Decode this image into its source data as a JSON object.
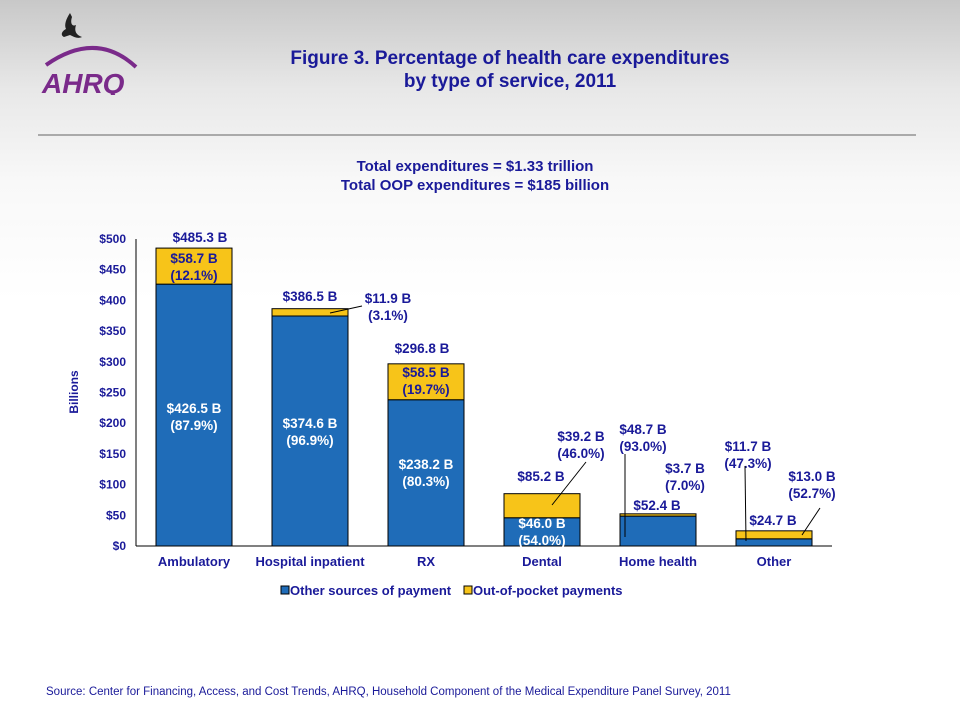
{
  "logo": {
    "text": "AHRQ",
    "icon": "hhs-eagle-icon"
  },
  "title_lines": [
    "Figure 3. Percentage of health care expenditures",
    "by type of service, 2011"
  ],
  "subtitle_lines": [
    "Total expenditures = $1.33 trillion",
    "Total OOP expenditures = $185 billion"
  ],
  "source": "Source: Center for Financing, Access, and Cost Trends, AHRQ, Household Component of the Medical Expenditure Panel Survey, 2011",
  "colors": {
    "other_sources": "#1f6cb8",
    "out_of_pocket": "#f7c419",
    "text": "#1a1a99"
  },
  "chart_data": {
    "type": "bar",
    "stacked": true,
    "ylabel": "Billions",
    "ylim": [
      0,
      500
    ],
    "yticks": [
      "$0",
      "$50",
      "$100",
      "$150",
      "$200",
      "$250",
      "$300",
      "$350",
      "$400",
      "$450",
      "$500"
    ],
    "ytick_values": [
      0,
      50,
      100,
      150,
      200,
      250,
      300,
      350,
      400,
      450,
      500
    ],
    "categories": [
      "Ambulatory",
      "Hospital inpatient",
      "RX",
      "Dental",
      "Home health",
      "Other"
    ],
    "series": [
      {
        "name": "Other sources of payment",
        "values": [
          426.5,
          374.6,
          238.2,
          46.0,
          48.7,
          11.7
        ]
      },
      {
        "name": "Out-of-pocket payments",
        "values": [
          58.7,
          11.9,
          58.5,
          39.2,
          3.7,
          13.0
        ]
      }
    ],
    "legend_position": "bottom",
    "grid": false,
    "data_labels": [
      {
        "total": "$485.3 B",
        "other": "$426.5 B",
        "other_pct": "(87.9%)",
        "oop": "$58.7 B",
        "oop_pct": "(12.1%)"
      },
      {
        "total": "$386.5 B",
        "other": "$374.6 B",
        "other_pct": "(96.9%)",
        "oop": "$11.9 B",
        "oop_pct": "(3.1%)"
      },
      {
        "total": "$296.8 B",
        "other": "$238.2 B",
        "other_pct": "(80.3%)",
        "oop": "$58.5 B",
        "oop_pct": "(19.7%)"
      },
      {
        "total": "$85.2 B",
        "other": "$46.0 B",
        "other_pct": "(54.0%)",
        "oop": "$39.2 B",
        "oop_pct": "(46.0%)"
      },
      {
        "total": "$52.4 B",
        "other": "$48.7 B",
        "other_pct": "(93.0%)",
        "oop": "$3.7 B",
        "oop_pct": "(7.0%)"
      },
      {
        "total": "$24.7 B",
        "other": "$11.7 B",
        "other_pct": "(47.3%)",
        "oop": "$13.0 B",
        "oop_pct": "(52.7%)"
      }
    ]
  }
}
